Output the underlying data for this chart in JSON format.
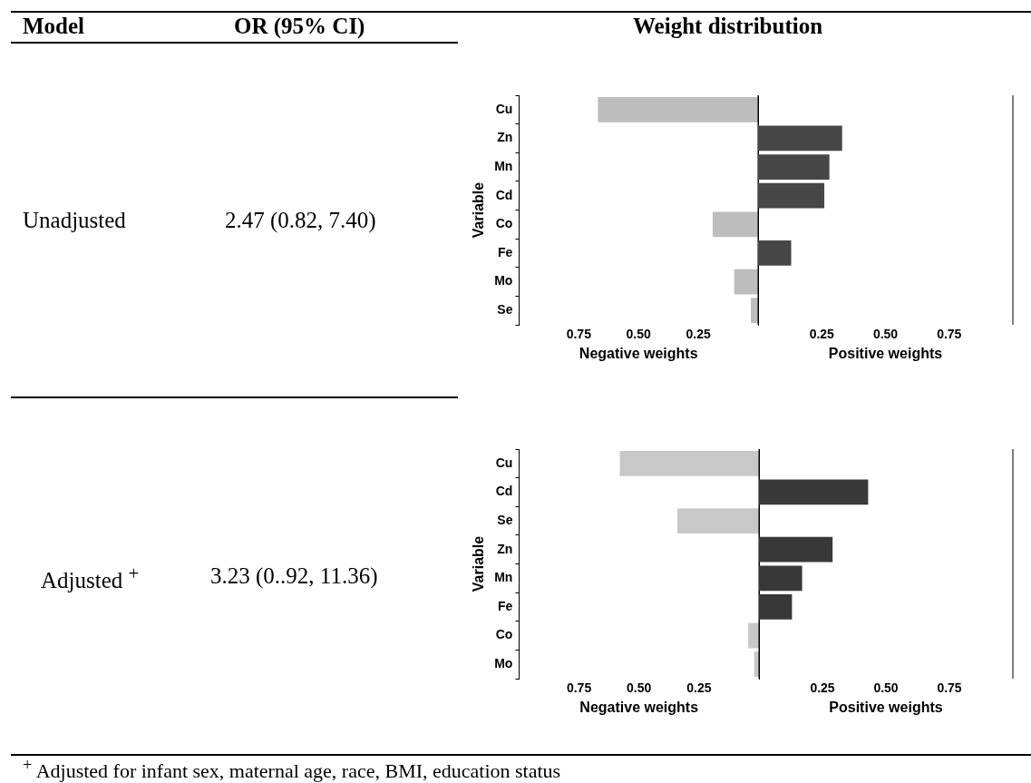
{
  "chart_data": [
    {
      "type": "other",
      "annotations": [
        "Model",
        "OR (95% CI)",
        "Weight distribution",
        "Unadjusted",
        "2.47 (0.82, 7.40)",
        "Adjusted $^{+}$",
        "3.23 (0..92, 11.36)",
        "$^{+}$ Adjusted for infant sex, maternal age, race, BMI, education status"
      ]
    },
    {
      "type": "bar",
      "orientation": "horizontal",
      "ylabel": "Variable",
      "xlabel": "Negative weights",
      "categories": [
        "Cu",
        "Zn",
        "Mn",
        "Cd",
        "Co",
        "Fe",
        "Mo",
        "Se"
      ],
      "values": [
        0.67,
        null,
        null,
        null,
        0.19,
        null,
        0.1,
        0.03
      ],
      "color": "#bdbdbd",
      "xlim": [
        1,
        0
      ],
      "xticks": [
        {
          "value": 0.75,
          "label": "0.75"
        },
        {
          "value": 0.5,
          "label": "0.50"
        },
        {
          "value": 0.25,
          "label": "0.25"
        }
      ],
      "grid": false,
      "legend": false
    },
    {
      "type": "bar",
      "orientation": "horizontal",
      "xlabel": "Positive weights",
      "categories": [
        null,
        null,
        null,
        null,
        null,
        null,
        null,
        null
      ],
      "values": [
        null,
        0.33,
        0.28,
        0.26,
        null,
        0.13,
        null,
        null
      ],
      "color": "#474747",
      "xlim": [
        0,
        1
      ],
      "xticks": [
        {
          "value": 0.25,
          "label": "0.25"
        },
        {
          "value": 0.5,
          "label": "0.50"
        },
        {
          "value": 0.75,
          "label": "0.75"
        }
      ],
      "tick_labels": "x",
      "grid": false,
      "legend": false
    },
    {
      "type": "bar",
      "orientation": "horizontal",
      "ylabel": "Variable",
      "xlabel": "Negative weights",
      "categories": [
        "Cu",
        "Cd",
        "Se",
        "Zn",
        "Mn",
        "Fe",
        "Co",
        "Mo"
      ],
      "values": [
        0.58,
        null,
        0.34,
        null,
        null,
        null,
        0.045,
        0.02
      ],
      "color": "#c8c8c8",
      "xlim": [
        1,
        0
      ],
      "xticks": [
        {
          "value": 0.75,
          "label": "0.75"
        },
        {
          "value": 0.5,
          "label": "0.50"
        },
        {
          "value": 0.25,
          "label": "0.25"
        }
      ],
      "grid": false,
      "legend": false
    },
    {
      "type": "bar",
      "orientation": "horizontal",
      "xlabel": "Positive weights",
      "categories": [
        null,
        null,
        null,
        null,
        null,
        null,
        null,
        null
      ],
      "values": [
        null,
        0.43,
        null,
        0.29,
        0.17,
        0.13,
        null,
        null
      ],
      "color": "#383838",
      "xlim": [
        0,
        1
      ],
      "xticks": [
        {
          "value": 0.25,
          "label": "0.25"
        },
        {
          "value": 0.5,
          "label": "0.50"
        },
        {
          "value": 0.75,
          "label": "0.75"
        }
      ],
      "tick_labels": "x",
      "grid": false,
      "legend": false
    }
  ]
}
